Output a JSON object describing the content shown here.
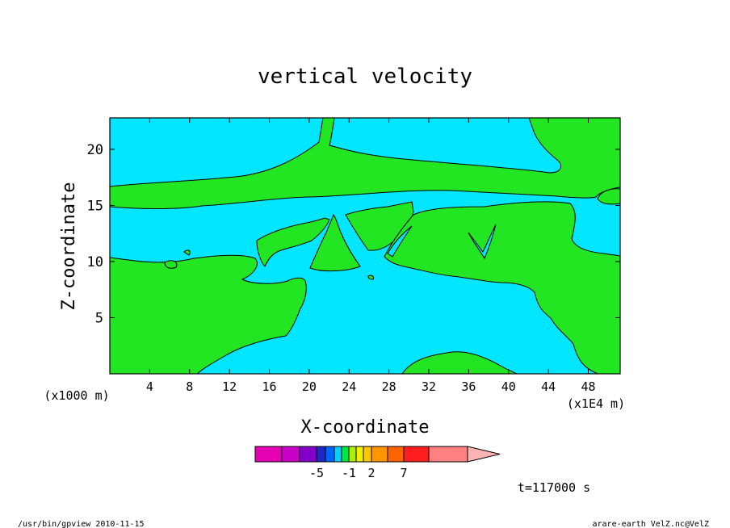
{
  "chart_data": {
    "type": "heatmap",
    "title": "vertical velocity",
    "xlabel": "X-coordinate",
    "ylabel": "Z-coordinate",
    "x_unit_left": "(x1000 m)",
    "x_unit_right": "(x1E4 m)",
    "time_label": "t=117000 s",
    "xlim": [
      0,
      51.2
    ],
    "ylim": [
      0,
      22.8
    ],
    "x_ticks": [
      4,
      8,
      12,
      16,
      20,
      24,
      28,
      32,
      36,
      40,
      44,
      48
    ],
    "y_ticks": [
      5,
      10,
      15,
      20
    ],
    "regions": [
      {
        "class": "positive",
        "color": "#22e622"
      },
      {
        "class": "negative",
        "color": "#00e6ff"
      }
    ],
    "colorbar": {
      "colors": [
        "#e600b4",
        "#c800c8",
        "#8200c8",
        "#1e28c8",
        "#0064ff",
        "#00d2ff",
        "#00e646",
        "#aaf000",
        "#f0f000",
        "#ffc800",
        "#ff9600",
        "#ff6400",
        "#ff1e1e",
        "#ff8080"
      ],
      "arrow_color": "#ffb4b4",
      "labels": [
        "-5",
        "-1",
        "2",
        "7"
      ]
    }
  },
  "footer": {
    "left": "/usr/bin/gpview   2010-11-15",
    "right": "arare-earth_VelZ.nc@VelZ"
  }
}
